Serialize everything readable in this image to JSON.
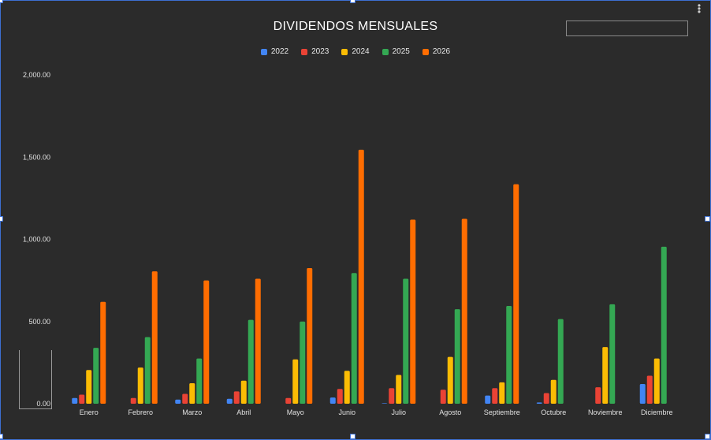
{
  "chart_data": {
    "type": "bar",
    "title": "DIVIDENDOS MENSUALES",
    "categories": [
      "Enero",
      "Febrero",
      "Marzo",
      "Abril",
      "Mayo",
      "Junio",
      "Julio",
      "Agosto",
      "Septiembre",
      "Octubre",
      "Noviembre",
      "Diciembre"
    ],
    "series": [
      {
        "name": "2022",
        "color": "#4285f4",
        "values": [
          35,
          0,
          25,
          30,
          0,
          38,
          3,
          0,
          50,
          8,
          0,
          120
        ]
      },
      {
        "name": "2023",
        "color": "#ea4335",
        "values": [
          55,
          35,
          60,
          75,
          35,
          90,
          95,
          85,
          95,
          65,
          100,
          170
        ]
      },
      {
        "name": "2024",
        "color": "#fbbc04",
        "values": [
          205,
          220,
          125,
          140,
          270,
          200,
          175,
          285,
          130,
          145,
          345,
          275
        ]
      },
      {
        "name": "2025",
        "color": "#34a853",
        "values": [
          340,
          405,
          275,
          510,
          500,
          795,
          760,
          575,
          595,
          515,
          605,
          955
        ]
      },
      {
        "name": "2026",
        "color": "#ff6d01",
        "values": [
          620,
          805,
          750,
          760,
          825,
          1545,
          1120,
          1125,
          1335,
          0,
          0,
          0
        ]
      }
    ],
    "yticks": [
      "0.00",
      "500.00",
      "1,000.00",
      "1,500.00",
      "2,000.00"
    ],
    "ylim": [
      0,
      2000
    ],
    "legend_position": "top"
  }
}
